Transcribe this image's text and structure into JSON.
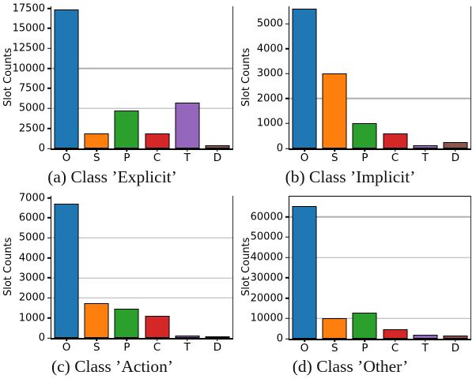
{
  "bar_colors": [
    "#1f77b4",
    "#ff7f0e",
    "#2ca02c",
    "#d62728",
    "#9467bd",
    "#8c564b"
  ],
  "grid_color": "#b0b0b0",
  "chart_data": [
    {
      "type": "bar",
      "title": "(a) Class ’Explicit’",
      "ylabel": "Slot Counts",
      "categories": [
        "O",
        "S",
        "P",
        "C",
        "T",
        "D"
      ],
      "values": [
        17400,
        1900,
        4750,
        1850,
        5700,
        400
      ],
      "ylim": [
        0,
        17750
      ],
      "yticks": [
        0,
        2500,
        5000,
        7500,
        10000,
        12500,
        15000,
        17500
      ],
      "gridlines": [
        5000,
        10000
      ],
      "top_spine": false,
      "legend": "none"
    },
    {
      "type": "bar",
      "title": "(b) Class ’Implicit’",
      "ylabel": "Slot Counts",
      "categories": [
        "O",
        "S",
        "P",
        "C",
        "T",
        "D"
      ],
      "values": [
        5600,
        3000,
        1000,
        600,
        120,
        250
      ],
      "ylim": [
        0,
        5700
      ],
      "yticks": [
        0,
        1000,
        2000,
        3000,
        4000,
        5000
      ],
      "gridlines": [
        2000
      ],
      "top_spine": false,
      "legend": "none"
    },
    {
      "type": "bar",
      "title": "(c) Class ’Action’",
      "ylabel": "Slot Counts",
      "categories": [
        "O",
        "S",
        "P",
        "C",
        "T",
        "D"
      ],
      "values": [
        6700,
        1750,
        1450,
        1100,
        110,
        70
      ],
      "ylim": [
        0,
        7100
      ],
      "yticks": [
        0,
        1000,
        2000,
        3000,
        4000,
        5000,
        6000,
        7000
      ],
      "gridlines": [
        2000,
        3000,
        5000
      ],
      "top_spine": false,
      "legend": "none"
    },
    {
      "type": "bar",
      "title": "(d) Class ’Other’",
      "ylabel": "Slot Counts",
      "categories": [
        "O",
        "S",
        "P",
        "C",
        "T",
        "D"
      ],
      "values": [
        65500,
        10200,
        12800,
        4700,
        1800,
        1500
      ],
      "ylim": [
        0,
        70000
      ],
      "yticks": [
        0,
        10000,
        20000,
        30000,
        40000,
        50000,
        60000
      ],
      "gridlines": [
        10000,
        40000,
        60000
      ],
      "top_spine": true,
      "legend": "none"
    }
  ]
}
